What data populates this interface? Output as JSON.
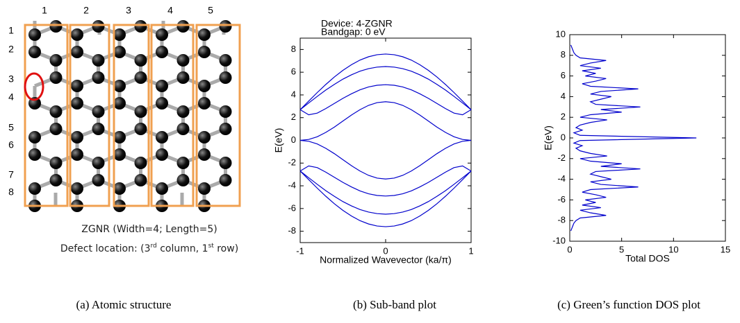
{
  "panel_a": {
    "column_labels": [
      "1",
      "2",
      "3",
      "4",
      "5"
    ],
    "row_labels": [
      "1",
      "2",
      "3",
      "4",
      "5",
      "6",
      "7",
      "8"
    ],
    "description": "ZGNR (Width=4; Length=5)",
    "defect": [
      "Defect location: (3",
      "rd",
      " column, 1",
      "st",
      " row)"
    ]
  },
  "captions": [
    "(a) Atomic structure",
    "(b) Sub-band plot",
    "(c) Green’s function DOS plot"
  ],
  "chart_data": [
    {
      "type": "line",
      "title": "Device: 4-ZGNR",
      "subtitle": "Bandgap: 0 eV",
      "x_label": "Normalized Wavevector (ka/π)",
      "y_label": "E(eV)",
      "color": "#0000cc",
      "xlim": [
        -1,
        1
      ],
      "ylim": [
        -9,
        9
      ],
      "xticks": [
        -1,
        0,
        1
      ],
      "yticks": [
        -8,
        -6,
        -4,
        -2,
        0,
        2,
        4,
        6,
        8
      ],
      "x": [
        -1,
        -0.9,
        -0.8,
        -0.7,
        -0.6,
        -0.5,
        -0.4,
        -0.3,
        -0.2,
        -0.1,
        0,
        0.1,
        0.2,
        0.3,
        0.4,
        0.5,
        0.6,
        0.7,
        0.8,
        0.9,
        1
      ],
      "series": [
        {
          "values": [
            2.7,
            3.46,
            4.21,
            4.92,
            5.58,
            6.16,
            6.66,
            7.07,
            7.36,
            7.54,
            7.6,
            7.54,
            7.36,
            7.07,
            6.66,
            6.16,
            5.58,
            4.92,
            4.21,
            3.46,
            2.7
          ]
        },
        {
          "values": [
            2.7,
            3.29,
            3.87,
            4.43,
            4.93,
            5.39,
            5.77,
            6.09,
            6.31,
            6.45,
            6.5,
            6.45,
            6.31,
            6.09,
            5.77,
            5.39,
            4.93,
            4.43,
            3.87,
            3.29,
            2.7
          ]
        },
        {
          "values": [
            2.7,
            2.25,
            2.4,
            2.8,
            3.25,
            3.7,
            4.1,
            4.45,
            4.7,
            4.85,
            4.9,
            4.85,
            4.7,
            4.45,
            4.1,
            3.7,
            3.25,
            2.8,
            2.4,
            2.25,
            2.7
          ]
        },
        {
          "values": [
            0,
            0.08,
            0.32,
            0.7,
            1.17,
            1.7,
            2.23,
            2.7,
            3.08,
            3.32,
            3.4,
            3.32,
            3.08,
            2.7,
            2.23,
            1.7,
            1.17,
            0.7,
            0.32,
            0.08,
            0
          ]
        },
        {
          "values": [
            0,
            -0.08,
            -0.32,
            -0.7,
            -1.17,
            -1.7,
            -2.23,
            -2.7,
            -3.08,
            -3.32,
            -3.4,
            -3.32,
            -3.08,
            -2.7,
            -2.23,
            -1.7,
            -1.17,
            -0.7,
            -0.32,
            -0.08,
            0
          ]
        },
        {
          "values": [
            -2.7,
            -2.25,
            -2.4,
            -2.8,
            -3.25,
            -3.7,
            -4.1,
            -4.45,
            -4.7,
            -4.85,
            -4.9,
            -4.85,
            -4.7,
            -4.45,
            -4.1,
            -3.7,
            -3.25,
            -2.8,
            -2.4,
            -2.25,
            -2.7
          ]
        },
        {
          "values": [
            -2.7,
            -3.29,
            -3.87,
            -4.43,
            -4.93,
            -5.39,
            -5.77,
            -6.09,
            -6.31,
            -6.45,
            -6.5,
            -6.45,
            -6.31,
            -6.09,
            -5.77,
            -5.39,
            -4.93,
            -4.43,
            -3.87,
            -3.29,
            -2.7
          ]
        },
        {
          "values": [
            -2.7,
            -3.46,
            -4.21,
            -4.92,
            -5.58,
            -6.16,
            -6.66,
            -7.07,
            -7.36,
            -7.54,
            -7.6,
            -7.54,
            -7.36,
            -7.07,
            -6.66,
            -6.16,
            -5.58,
            -4.92,
            -4.21,
            -3.46,
            -2.7
          ]
        }
      ]
    },
    {
      "type": "line",
      "x_label": "Total DOS",
      "y_label": "E(eV)",
      "color": "#0000cc",
      "xlim": [
        0,
        15
      ],
      "ylim": [
        -10,
        10
      ],
      "xticks": [
        0,
        5,
        10,
        15
      ],
      "yticks": [
        -10,
        -8,
        -6,
        -4,
        -2,
        0,
        2,
        4,
        6,
        8,
        10
      ],
      "y": [
        -9,
        -8.75,
        -8.5,
        -8.25,
        -8,
        -7.75,
        -7.5,
        -7.25,
        -7,
        -6.75,
        -6.5,
        -6.25,
        -6,
        -5.75,
        -5.5,
        -5.25,
        -5,
        -4.75,
        -4.5,
        -4.25,
        -4,
        -3.75,
        -3.5,
        -3.25,
        -3,
        -2.75,
        -2.5,
        -2.25,
        -2,
        -1.75,
        -1.5,
        -1.25,
        -1,
        -0.75,
        -0.5,
        -0.25,
        0,
        0.25,
        0.5,
        0.75,
        1,
        1.25,
        1.5,
        1.75,
        2,
        2.25,
        2.5,
        2.75,
        3,
        3.25,
        3.5,
        3.75,
        4,
        4.25,
        4.5,
        4.75,
        5,
        5.25,
        5.5,
        5.75,
        6,
        6.25,
        6.5,
        6.75,
        7,
        7.25,
        7.5,
        7.75,
        8,
        8.25,
        8.5,
        8.75,
        9
      ],
      "x": [
        0.1,
        0.2,
        0.3,
        0.4,
        0.6,
        1.0,
        3.5,
        2.0,
        1.0,
        3.0,
        1.2,
        2.5,
        1.5,
        3.5,
        2.5,
        1.2,
        2.0,
        6.6,
        3.0,
        2.0,
        4.0,
        3.0,
        2.0,
        2.5,
        6.8,
        3.0,
        5.0,
        2.0,
        1.0,
        3.6,
        2.0,
        1.0,
        0.6,
        1.2,
        0.4,
        1.0,
        12.2,
        1.0,
        0.4,
        1.2,
        0.6,
        1.0,
        2.0,
        3.6,
        1.0,
        2.0,
        5.0,
        3.0,
        6.8,
        2.5,
        2.0,
        3.0,
        4.0,
        2.0,
        3.0,
        6.6,
        2.0,
        1.2,
        2.5,
        3.5,
        1.5,
        2.5,
        1.2,
        3.0,
        1.0,
        2.0,
        3.5,
        1.0,
        0.6,
        0.4,
        0.3,
        0.2,
        0.1
      ]
    }
  ]
}
